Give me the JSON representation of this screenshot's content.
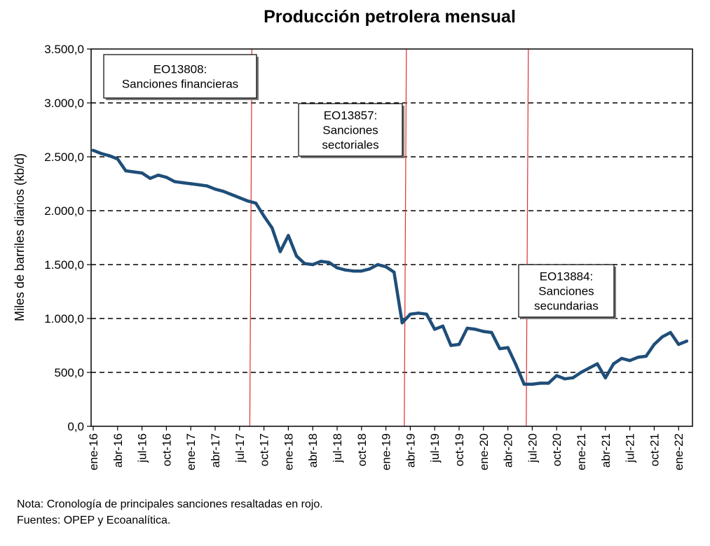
{
  "chart_data": {
    "type": "line",
    "title": "Producción petrolera mensual",
    "ylabel": "Miles de barriles diarios  (kb/d)",
    "xlabel": "",
    "ylim": [
      0,
      3500
    ],
    "yticks": [
      "0,0",
      "500,0",
      "1.000,0",
      "1.500,0",
      "2.000,0",
      "2.500,0",
      "3.000,0",
      "3.500,0"
    ],
    "grid": "horizontal-dashed",
    "x_labels": [
      "ene-16",
      "abr-16",
      "jul-16",
      "oct-16",
      "ene-17",
      "abr-17",
      "jul-17",
      "oct-17",
      "ene-18",
      "abr-18",
      "jul-18",
      "oct-18",
      "ene-19",
      "abr-19",
      "jul-19",
      "oct-19",
      "ene-20",
      "abr-20",
      "jul-20",
      "oct-20",
      "ene-21",
      "abr-21",
      "jul-21",
      "oct-21",
      "ene-22"
    ],
    "series": [
      {
        "color": "#1f4e79",
        "start": "ene-16",
        "values": [
          2560,
          2530,
          2510,
          2480,
          2370,
          2360,
          2350,
          2300,
          2330,
          2310,
          2270,
          2260,
          2250,
          2240,
          2230,
          2200,
          2180,
          2150,
          2120,
          2090,
          2070,
          1950,
          1840,
          1620,
          1770,
          1580,
          1510,
          1500,
          1530,
          1520,
          1470,
          1450,
          1440,
          1440,
          1460,
          1500,
          1480,
          1430,
          960,
          1040,
          1050,
          1040,
          900,
          930,
          750,
          760,
          910,
          900,
          880,
          870,
          720,
          730,
          570,
          390,
          390,
          400,
          400,
          470,
          440,
          450,
          500,
          540,
          580,
          450,
          580,
          630,
          610,
          640,
          650,
          760,
          830,
          870,
          760,
          790
        ]
      }
    ],
    "events": [
      {
        "date": "ago-17",
        "lines": [
          "EO13808:",
          "Sanciones financieras"
        ],
        "label_position": "top-left"
      },
      {
        "date": "mar-19",
        "lines": [
          "EO13857:",
          "Sanciones",
          "sectoriales"
        ],
        "label_position": "upper-middle"
      },
      {
        "date": "jun-20",
        "lines": [
          "EO13884:",
          "Sanciones",
          "secundarias"
        ],
        "label_position": "middle-right"
      }
    ],
    "event_line_color": "#e03030"
  },
  "notes": [
    "Nota: Cronología de principales sanciones resaltadas en rojo.",
    "Fuentes: OPEP y Ecoanalítica."
  ]
}
